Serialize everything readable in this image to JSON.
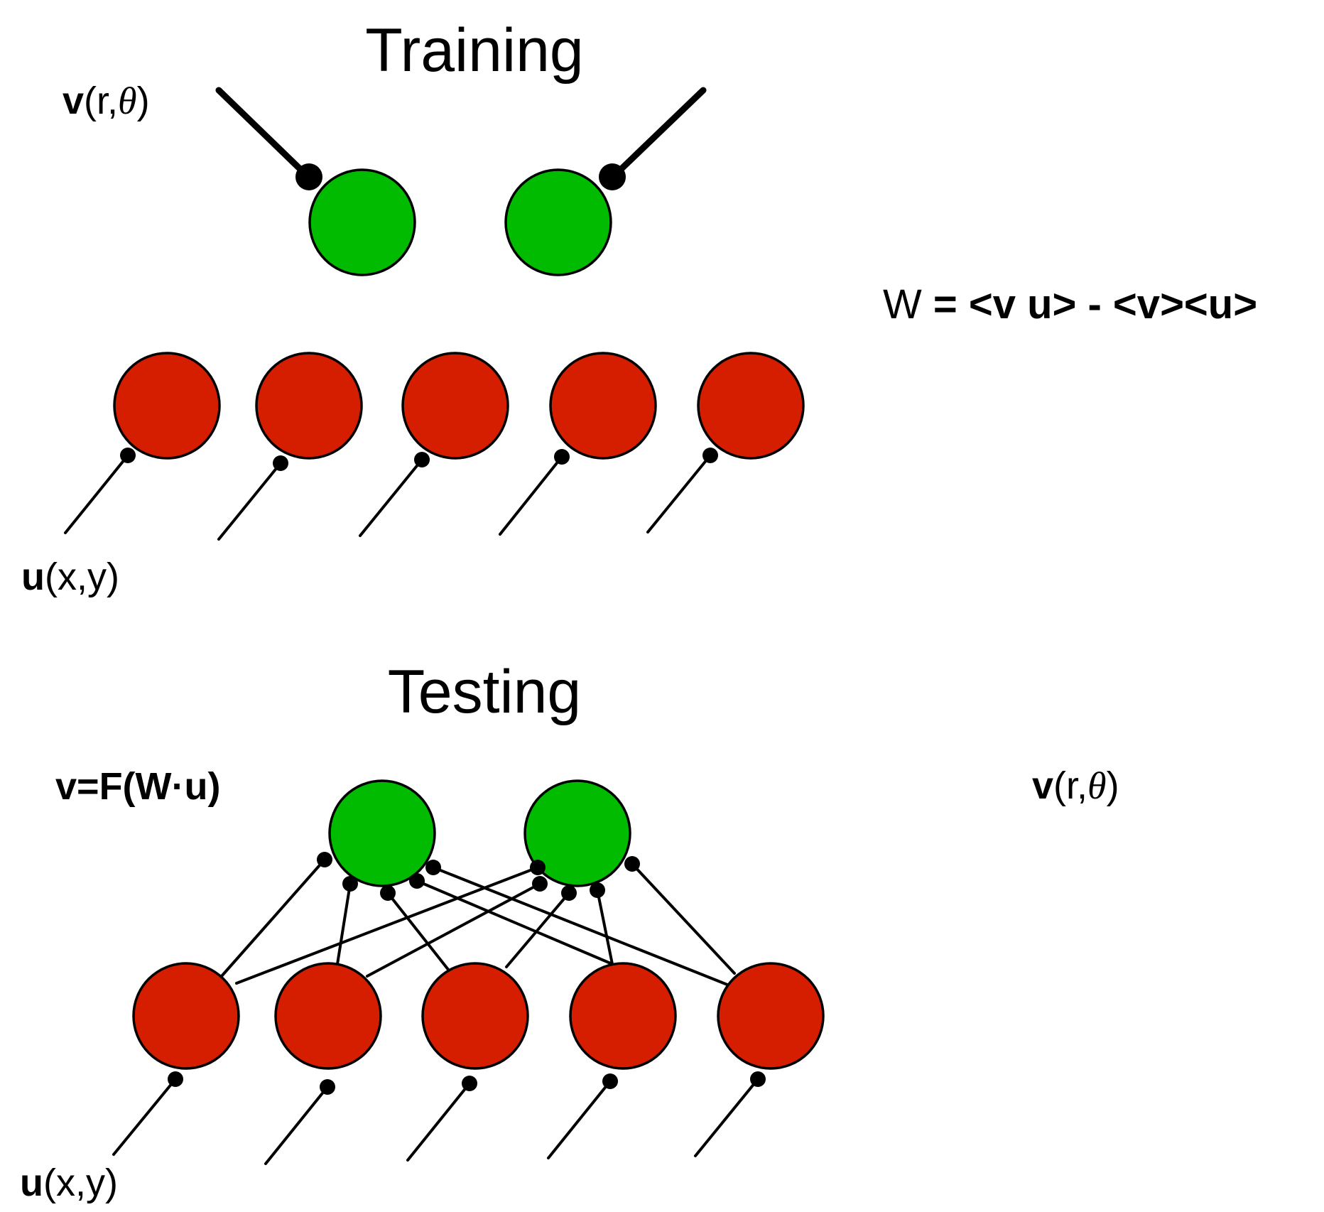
{
  "colors": {
    "output": "#00BB00",
    "input": "#D51E00",
    "line": "#000000",
    "background": "#FFFFFF"
  },
  "training": {
    "title": "Training",
    "output_label": {
      "vector": "v",
      "args_open": "(r,",
      "theta": "θ",
      "args_close": ")"
    },
    "input_label": {
      "vector": "u",
      "args": "(x,y)"
    },
    "output_count": 2,
    "input_count": 5
  },
  "rule": {
    "lhs": "W",
    "rhs": " = <v u> - <v><u>"
  },
  "testing": {
    "title": "Testing",
    "formula": "v=F(W·u)",
    "output_label": {
      "vector": "v",
      "args_open": "(r,",
      "theta": "θ",
      "args_close": ")"
    },
    "input_label": {
      "vector": "u",
      "args": "(x,y)"
    },
    "output_count": 2,
    "input_count": 5,
    "connectivity": "all-to-all"
  }
}
